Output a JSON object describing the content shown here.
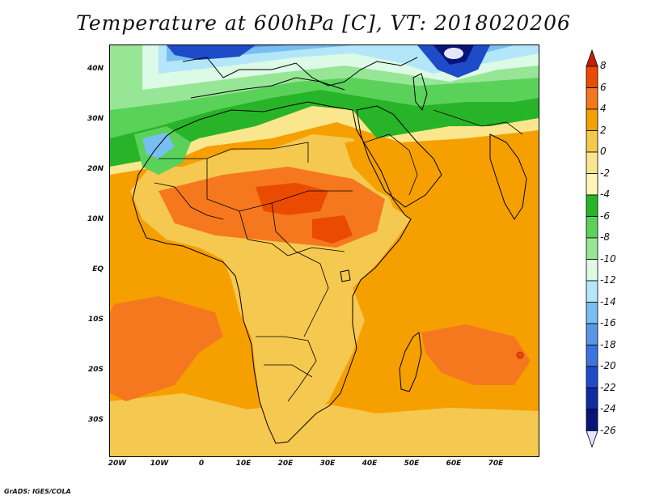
{
  "title": "Temperature at 600hPa [C], VT: 2018020206",
  "credit": "GrADS: IGES/COLA",
  "lat_labels": [
    "40N",
    "30N",
    "20N",
    "10N",
    "EQ",
    "10S",
    "20S",
    "30S"
  ],
  "lon_labels": [
    "20W",
    "10W",
    "0",
    "10E",
    "20E",
    "30E",
    "40E",
    "50E",
    "60E",
    "70E"
  ],
  "colorbar": {
    "labels": [
      "8",
      "6",
      "4",
      "2",
      "0",
      "-2",
      "-4",
      "-6",
      "-8",
      "-10",
      "-12",
      "-14",
      "-16",
      "-18",
      "-20",
      "-22",
      "-24",
      "-26"
    ],
    "colors": [
      "#c81e00",
      "#eb4b00",
      "#f5781e",
      "#f5a000",
      "#f5c850",
      "#fae68c",
      "#fff5b4",
      "#28b428",
      "#5ad25a",
      "#96e696",
      "#dcfae6",
      "#b4e6fa",
      "#78bef0",
      "#5a96e6",
      "#3c73dc",
      "#1e4bc8",
      "#0f2da0",
      "#0a1478",
      "#e6e6ff"
    ]
  },
  "map_colors": {
    "ocean_warm": "#f5a000",
    "land_warm": "#f5c850",
    "hot": "#f5781e",
    "very_hot": "#eb4b00",
    "cool": "#fae68c",
    "green_dark": "#28b428",
    "green": "#5ad25a",
    "green_light": "#96e696",
    "cyan": "#dcfae6",
    "blue_light": "#b4e6fa",
    "blue": "#78bef0",
    "blue_mid": "#5a96e6",
    "blue_dark": "#1e4bc8",
    "navy": "#0a1478",
    "coast": "#000000"
  }
}
